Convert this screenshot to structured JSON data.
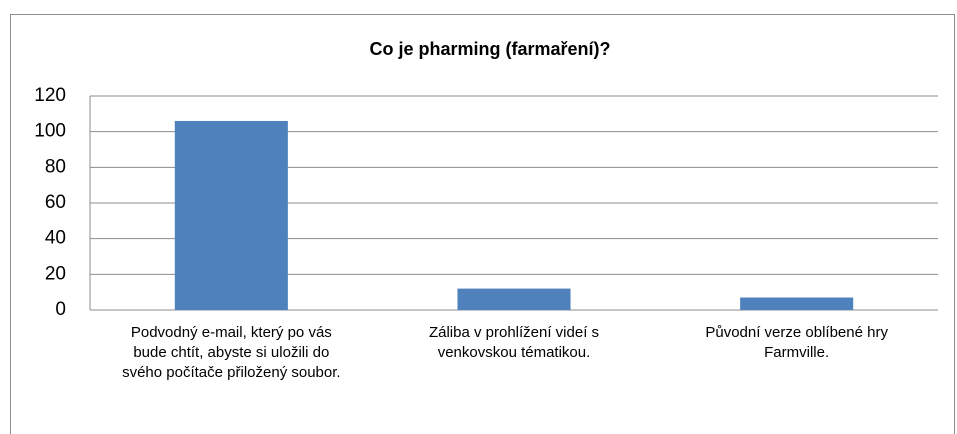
{
  "chart_data": {
    "type": "bar",
    "title": "Co je pharming (farmaření)?",
    "categories": [
      "Podvodný e-mail, který po vás bude chtít, abyste si uložili do svého počítače přiložený soubor.",
      "Záliba v prohlížení videí s venkovskou tématikou.",
      "Původní verze oblíbené hry Farmville."
    ],
    "values": [
      106,
      12,
      7
    ],
    "color": "#4f81bd",
    "ylim": [
      0,
      120
    ],
    "yticks": [
      0,
      20,
      40,
      60,
      80,
      100,
      120
    ],
    "grid": true
  }
}
